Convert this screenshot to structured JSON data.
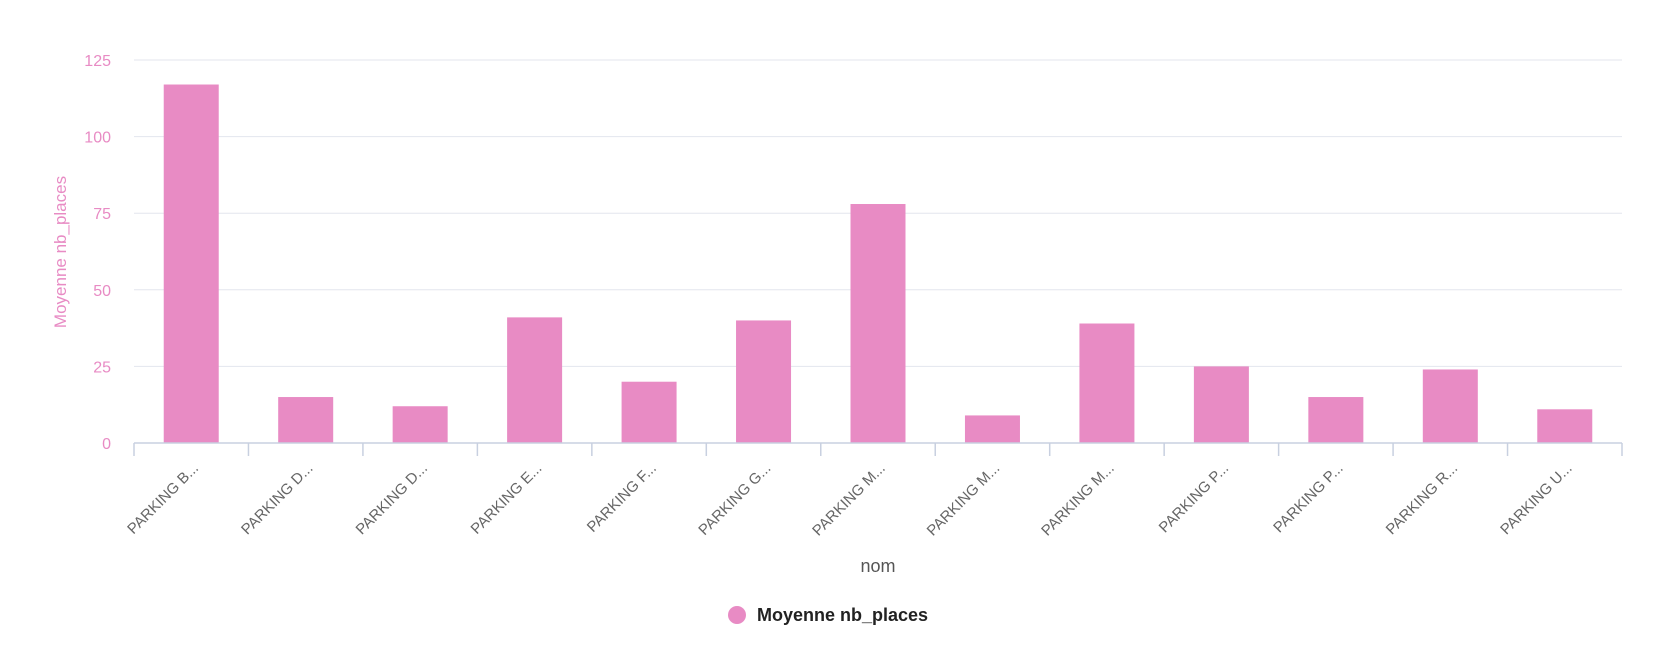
{
  "chart_data": {
    "type": "bar",
    "categories": [
      "PARKING B...",
      "PARKING D...",
      "PARKING D...",
      "PARKING E...",
      "PARKING F...",
      "PARKING G...",
      "PARKING M...",
      "PARKING M...",
      "PARKING M...",
      "PARKING P...",
      "PARKING P...",
      "PARKING R...",
      "PARKING U..."
    ],
    "series": [
      {
        "name": "Moyenne nb_places",
        "values": [
          117,
          15,
          12,
          41,
          20,
          40,
          78,
          9,
          39,
          25,
          15,
          24,
          11
        ],
        "color": "#e88bc4"
      }
    ],
    "title": "",
    "xlabel": "nom",
    "ylabel": "Moyenne nb_places",
    "ylim": [
      0,
      125
    ],
    "yticks": [
      0,
      25,
      50,
      75,
      100,
      125
    ],
    "grid": true,
    "legend_position": "bottom-center",
    "colors": {
      "bar": "#e88bc4",
      "axis_text": "#e88bc4",
      "grid": "#e3e6ee",
      "axis_line": "#c8d0e0"
    }
  }
}
